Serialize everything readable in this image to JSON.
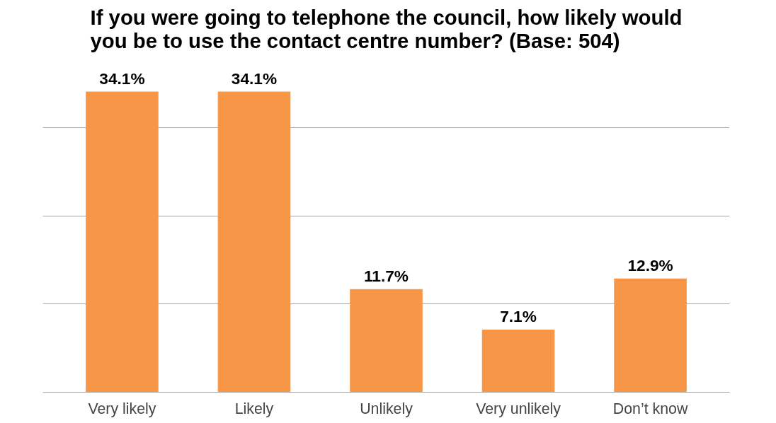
{
  "chart_data": {
    "type": "bar",
    "title": "If you were going to telephone the council, how likely would\nyou be to use the contact centre number? (Base: 504)",
    "categories": [
      "Very likely",
      "Likely",
      "Unlikely",
      "Very unlikely",
      "Don’t know"
    ],
    "values": [
      34.1,
      34.1,
      11.7,
      7.1,
      12.9
    ],
    "color": "#f79646",
    "value_labels": [
      "34.1%",
      "34.1%",
      "11.7%",
      "7.1%",
      "12.9%"
    ],
    "yticks": [
      {
        "value": 0,
        "label": null
      },
      {
        "value": 10,
        "label": null
      },
      {
        "value": 20,
        "label": null
      },
      {
        "value": 30,
        "label": null
      }
    ],
    "grid": "y"
  }
}
